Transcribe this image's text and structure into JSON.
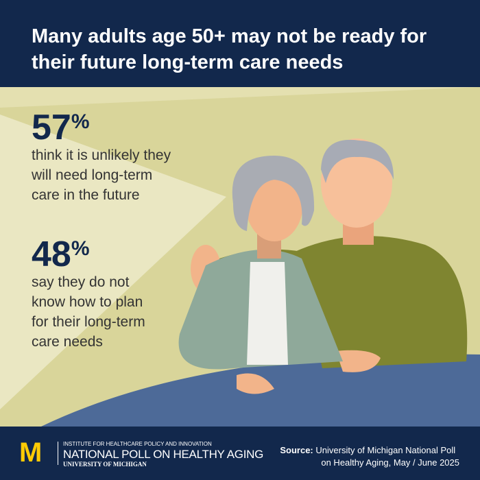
{
  "header": {
    "title": "Many adults age 50+ may not be ready for their future long-term care needs"
  },
  "stats": [
    {
      "figure": "57",
      "unit": "%",
      "lines": [
        "think it is unlikely they",
        "will need long-term",
        "care in the future"
      ]
    },
    {
      "figure": "48",
      "unit": "%",
      "lines": [
        "say they do not",
        "know how to plan",
        "for their long-term",
        "care needs"
      ]
    }
  ],
  "footer": {
    "logo": "M",
    "institute": "INSTITUTE FOR HEALTHCARE POLICY AND INNOVATION",
    "poll": "NATIONAL POLL ON HEALTHY AGING",
    "university": "UNIVERSITY OF MICHIGAN",
    "source_label": "Source:",
    "source_lines": [
      "University of Michigan National Poll",
      "on Healthy Aging, May / June 2025"
    ]
  }
}
